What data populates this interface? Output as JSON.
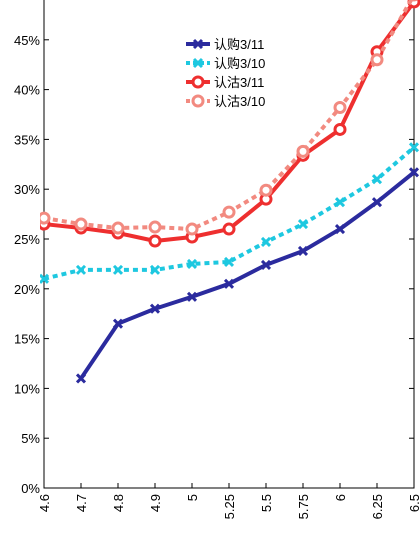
{
  "chart_data": {
    "type": "line",
    "title": "",
    "xlabel": "",
    "ylabel": "",
    "x_categories": [
      "4.6",
      "4.7",
      "4.8",
      "4.9",
      "5",
      "5.25",
      "5.5",
      "5.75",
      "6",
      "6.25",
      "6.5"
    ],
    "y_ticks": [
      "0%",
      "5%",
      "10%",
      "15%",
      "20%",
      "25%",
      "30%",
      "35%",
      "40%",
      "45%"
    ],
    "ylim": [
      0,
      50
    ],
    "grid": false,
    "legend_position": "top-center",
    "series": [
      {
        "name": "认购3/11",
        "color": "#2b2b9e",
        "line_style": "solid",
        "marker": "x",
        "values": [
          null,
          11.0,
          16.5,
          18.0,
          19.2,
          20.5,
          22.4,
          23.8,
          26.0,
          28.7,
          31.7
        ]
      },
      {
        "name": "认购3/10",
        "color": "#1ec8e0",
        "line_style": "dotted",
        "marker": "x",
        "values": [
          21.0,
          21.9,
          21.9,
          21.9,
          22.5,
          22.7,
          24.7,
          26.5,
          28.7,
          31.0,
          34.2
        ]
      },
      {
        "name": "认沽3/11",
        "color": "#ee2f2f",
        "line_style": "solid",
        "marker": "o",
        "values": [
          26.5,
          26.1,
          25.6,
          24.8,
          25.2,
          26.0,
          29.0,
          33.4,
          36.0,
          43.8,
          48.8
        ]
      },
      {
        "name": "认沽3/10",
        "color": "#f28a80",
        "line_style": "dotted",
        "marker": "o",
        "values": [
          27.1,
          26.5,
          26.1,
          26.2,
          26.0,
          27.7,
          29.9,
          33.8,
          38.2,
          43.0,
          49.5
        ]
      }
    ]
  }
}
